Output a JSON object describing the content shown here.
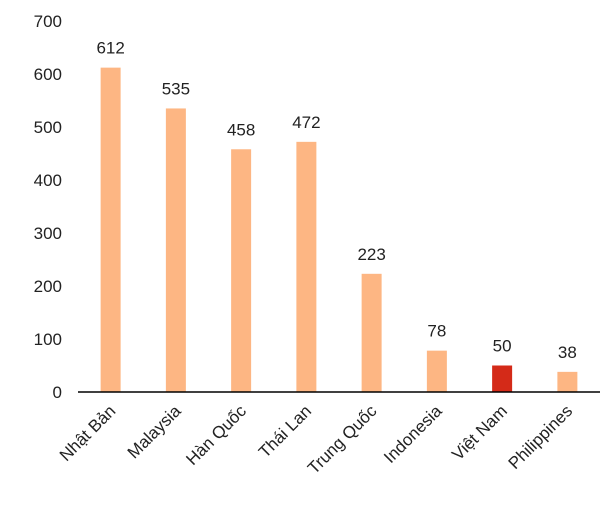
{
  "chart_data": {
    "type": "bar",
    "categories": [
      "Nhật Bản",
      "Malaysia",
      "Hàn Quốc",
      "Thái Lan",
      "Trung Quốc",
      "Indonesia",
      "Việt Nam",
      "Philippines"
    ],
    "values": [
      612,
      535,
      458,
      472,
      223,
      78,
      50,
      38
    ],
    "data_labels": [
      "612",
      "535",
      "458",
      "472",
      "223",
      "78",
      "50",
      "38"
    ],
    "bar_colors": [
      "#FDB683",
      "#FDB683",
      "#FDB683",
      "#FDB683",
      "#FDB683",
      "#FDB683",
      "#D42A18",
      "#FDB683"
    ],
    "ylim": [
      0,
      700
    ],
    "yticks": [
      0,
      100,
      200,
      300,
      400,
      500,
      600,
      700
    ],
    "ytick_labels": [
      "0",
      "100",
      "200",
      "300",
      "400",
      "500",
      "600",
      "700"
    ],
    "grid": false,
    "title": "",
    "xlabel": "",
    "ylabel": "",
    "colors": {
      "bar": "#FDB683",
      "highlight": "#D42A18",
      "axis": "#000000"
    }
  }
}
